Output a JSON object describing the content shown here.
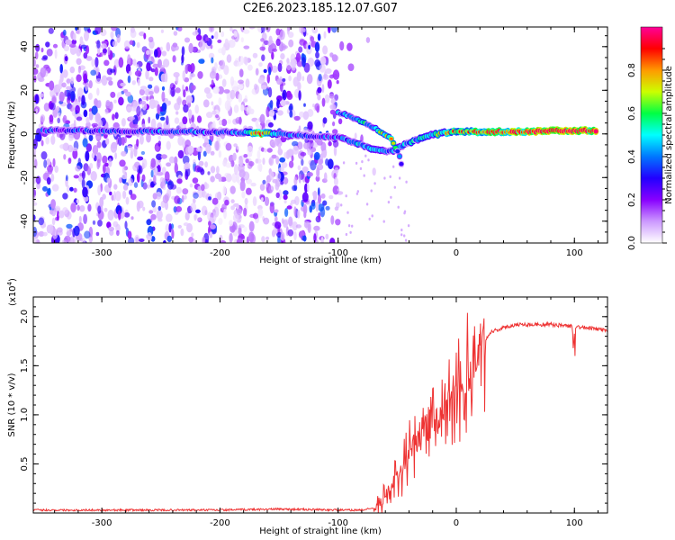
{
  "title": "C2E6.2023.185.12.07.G07",
  "chart_data": [
    {
      "type": "heatmap",
      "title": "C2E6.2023.185.12.07.G07",
      "xlabel": "Height of straight line (km)",
      "ylabel": "Frequency (Hz)",
      "xlim": [
        -358,
        128
      ],
      "ylim": [
        -50,
        49
      ],
      "xticks": [
        -300,
        -200,
        -100,
        0,
        100
      ],
      "yticks": [
        -40,
        -20,
        0,
        20,
        40
      ],
      "xtick_labels": [
        "-300",
        "-200",
        "-100",
        "0",
        "100"
      ],
      "ytick_labels": [
        "-40",
        "-20",
        "0",
        "20",
        "40"
      ],
      "colorbar": {
        "label": "Normalized spectral amplitude",
        "range": [
          0.0,
          1.0
        ],
        "ticks": [
          0.0,
          0.2,
          0.4,
          0.6,
          0.8
        ],
        "tick_labels": [
          "0.0",
          "0.2",
          "0.4",
          "0.6",
          "0.8"
        ],
        "colors": [
          "#ffffff",
          "#cc99ff",
          "#8800ff",
          "#2200ff",
          "#0077ff",
          "#00ffff",
          "#00ff44",
          "#ccff00",
          "#ff9900",
          "#ff0000",
          "#ff0099"
        ]
      },
      "main_track": [
        {
          "x": -350,
          "f": 1.5,
          "a": 0.3
        },
        {
          "x": -330,
          "f": 1.5,
          "a": 0.3
        },
        {
          "x": -280,
          "f": 1.3,
          "a": 0.3
        },
        {
          "x": -260,
          "f": 1.2,
          "a": 0.35
        },
        {
          "x": -240,
          "f": 1.0,
          "a": 0.35
        },
        {
          "x": -220,
          "f": 1.0,
          "a": 0.35
        },
        {
          "x": -200,
          "f": 0.8,
          "a": 0.35
        },
        {
          "x": -180,
          "f": 0.6,
          "a": 0.45
        },
        {
          "x": -165,
          "f": 0.3,
          "a": 0.8
        },
        {
          "x": -150,
          "f": 0.0,
          "a": 0.4
        },
        {
          "x": -135,
          "f": -0.5,
          "a": 0.35
        },
        {
          "x": -120,
          "f": -1.0,
          "a": 0.3
        },
        {
          "x": -100,
          "f": -1.5,
          "a": 0.35
        },
        {
          "x": -85,
          "f": -4.0,
          "a": 0.4
        },
        {
          "x": -70,
          "f": -7.0,
          "a": 0.45
        },
        {
          "x": -55,
          "f": -8.0,
          "a": 0.4
        },
        {
          "x": -40,
          "f": -4.0,
          "a": 0.45
        },
        {
          "x": -25,
          "f": -1.0,
          "a": 0.5
        },
        {
          "x": -10,
          "f": 0.5,
          "a": 0.6
        },
        {
          "x": 0,
          "f": 1.0,
          "a": 0.7
        },
        {
          "x": 20,
          "f": 1.0,
          "a": 0.75
        },
        {
          "x": 40,
          "f": 1.0,
          "a": 0.8
        },
        {
          "x": 60,
          "f": 1.0,
          "a": 0.85
        },
        {
          "x": 80,
          "f": 1.5,
          "a": 0.95
        },
        {
          "x": 100,
          "f": 1.5,
          "a": 0.9
        },
        {
          "x": 120,
          "f": 1.5,
          "a": 0.9
        }
      ],
      "upper_branch": [
        {
          "x": -100,
          "f": 10.0,
          "a": 0.35
        },
        {
          "x": -85,
          "f": 7.0,
          "a": 0.45
        },
        {
          "x": -70,
          "f": 3.0,
          "a": 0.5
        },
        {
          "x": -55,
          "f": -2.0,
          "a": 0.6
        },
        {
          "x": -48,
          "f": -10.0,
          "a": 0.4
        },
        {
          "x": -45,
          "f": -18.0,
          "a": 0.3
        }
      ]
    },
    {
      "type": "line",
      "series": [
        {
          "name": "SNR",
          "color": "#ee3333"
        }
      ],
      "xlabel": "Height of straight line (km)",
      "ylabel": "SNR (10 * v/v)",
      "scale_label": "(x10",
      "scale_exp": "4",
      "scale_close": ")",
      "xlim": [
        -358,
        128
      ],
      "ylim": [
        0,
        2.2
      ],
      "xticks": [
        -300,
        -200,
        -100,
        0,
        100
      ],
      "yticks": [
        0.5,
        1.0,
        1.5,
        2.0
      ],
      "xtick_labels": [
        "-300",
        "-200",
        "-100",
        "0",
        "100"
      ],
      "ytick_labels": [
        "0.5",
        "1.0",
        "1.5",
        "2.0"
      ],
      "envelope": {
        "x": [
          -358,
          -200,
          -150,
          -100,
          -80,
          -70,
          -60,
          -50,
          -40,
          -30,
          -20,
          -10,
          0,
          10,
          20,
          30,
          50,
          80,
          100,
          128
        ],
        "y": [
          0.03,
          0.03,
          0.04,
          0.03,
          0.03,
          0.05,
          0.15,
          0.35,
          0.6,
          0.8,
          0.95,
          1.05,
          1.2,
          1.45,
          1.7,
          1.85,
          1.92,
          1.92,
          1.9,
          1.86
        ]
      }
    }
  ]
}
